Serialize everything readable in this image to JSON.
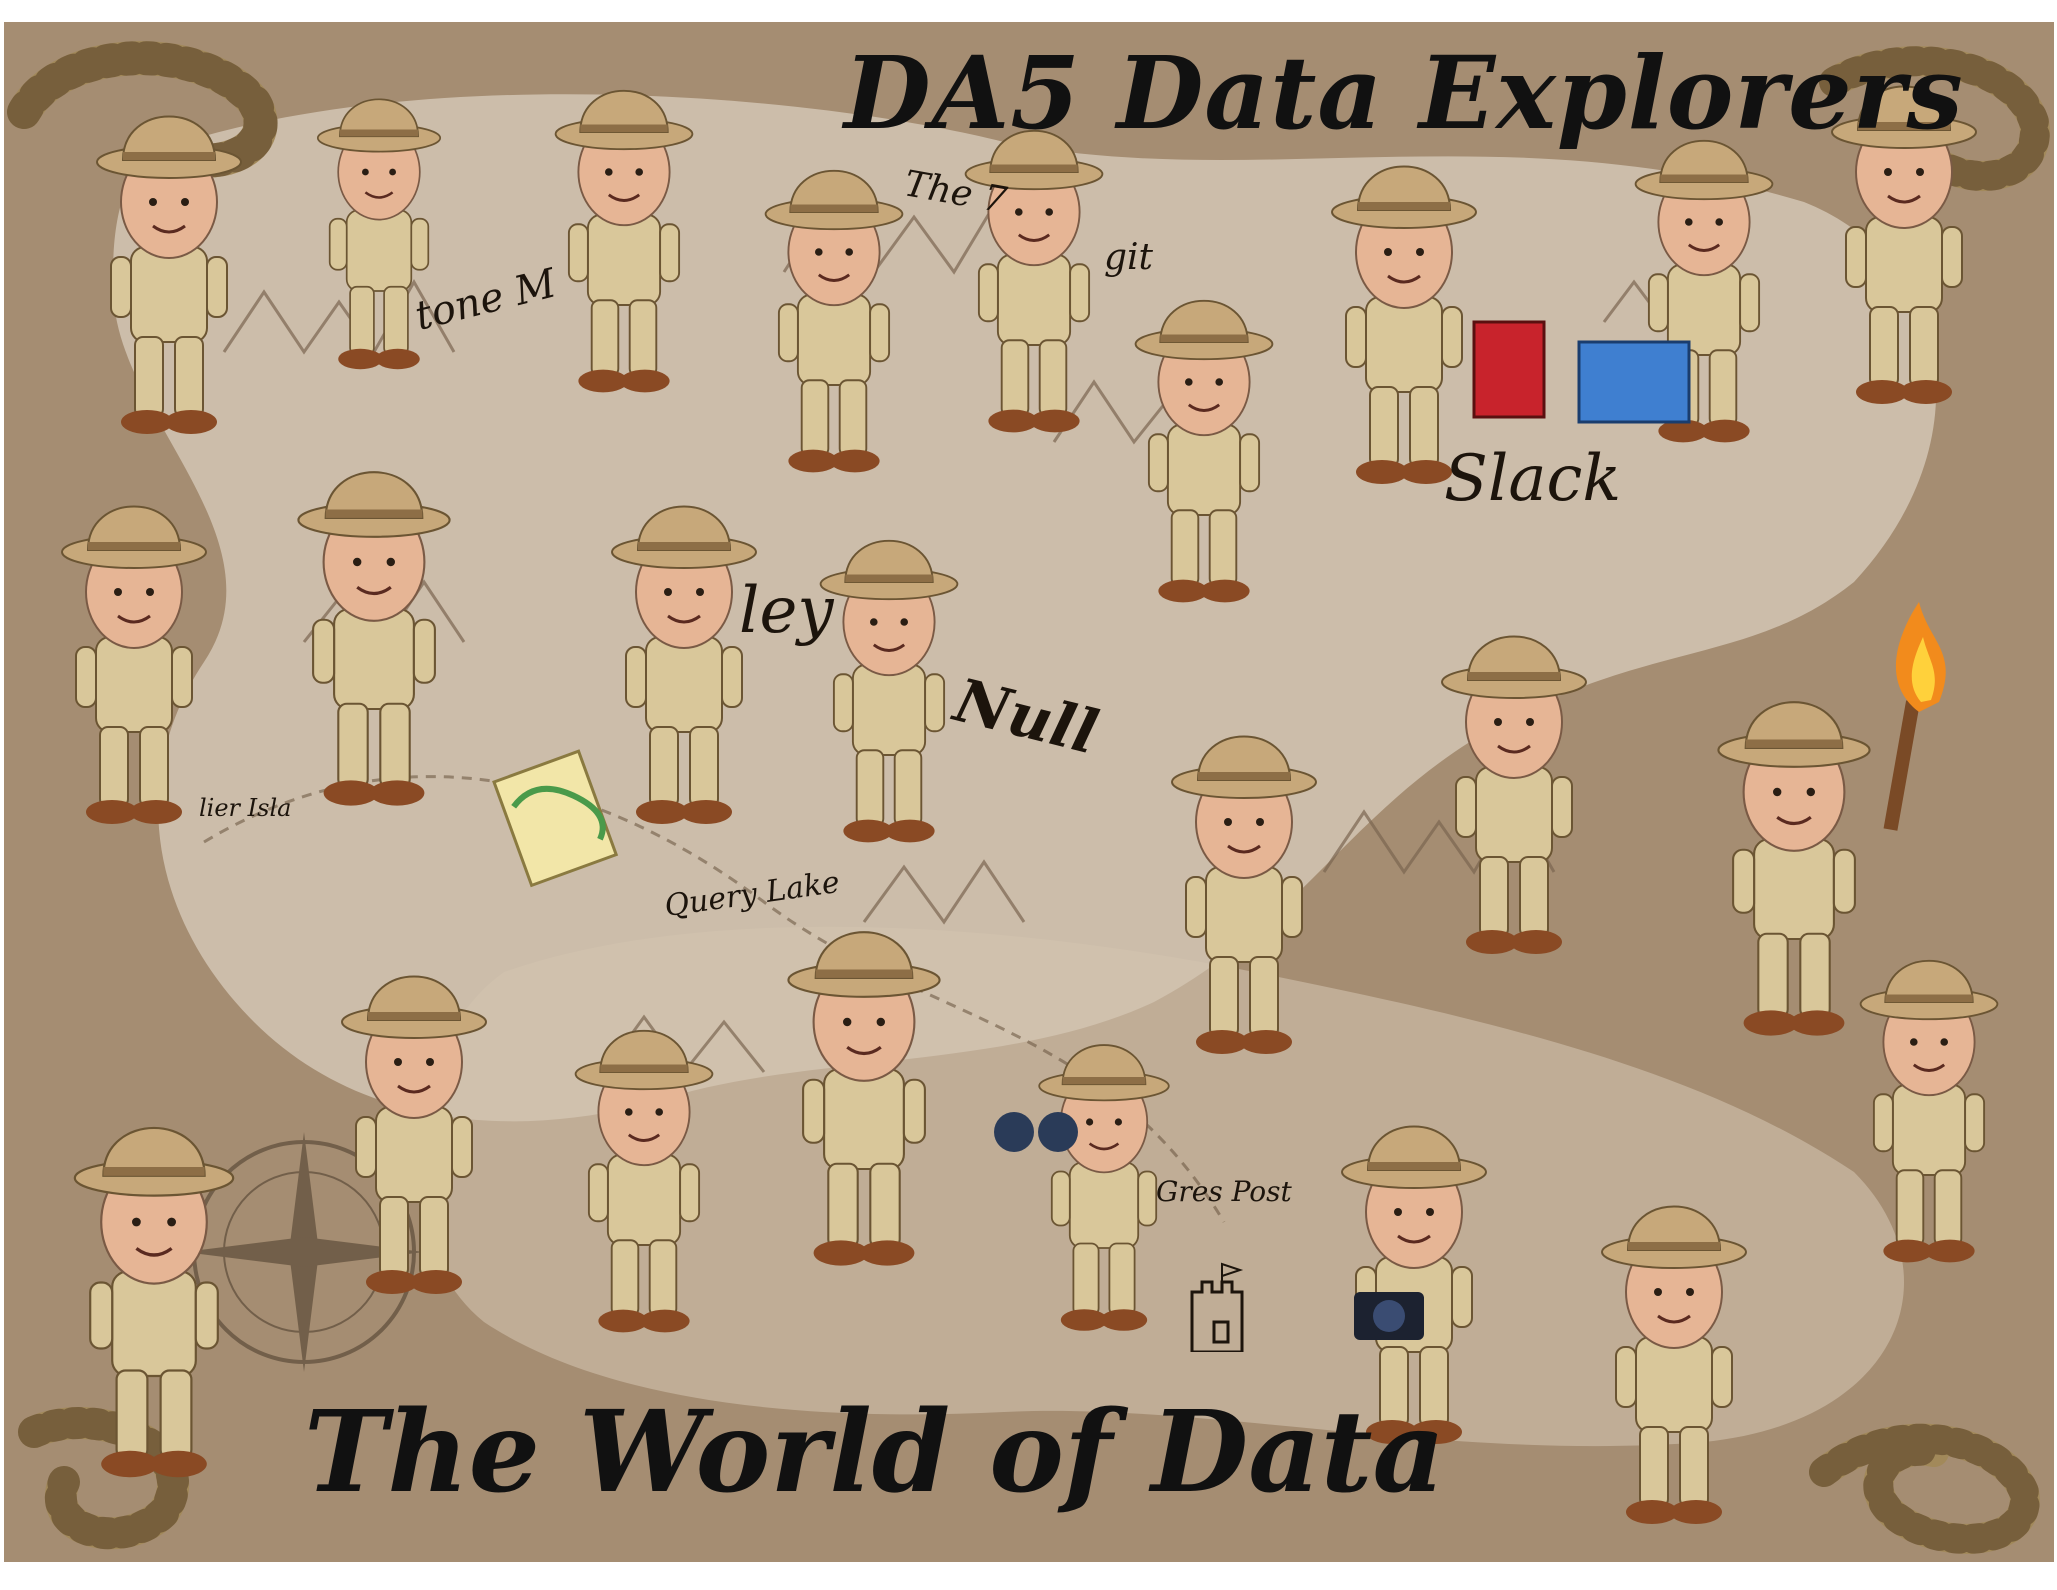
{
  "poster": {
    "title": "DA5 Data Explorers",
    "subtitle": "The World of Data"
  },
  "map_labels": {
    "query_lake": "Query Lake",
    "gres_post": "Gres Post",
    "slack_forest": "Slack",
    "null": "Null",
    "ley": "ley",
    "outlier_island": "lier Isla",
    "tone_mountain": "tone M",
    "the_git": "The 7",
    "git": "git"
  },
  "colors": {
    "map_paper": "#a58d72",
    "map_light": "#d9cdbd",
    "khaki": "#d9c79a",
    "helmet": "#c7a87a",
    "boot": "#8a4a24",
    "skin": "#e6b595",
    "ink": "#111111"
  },
  "icons": [
    "snake-icon",
    "castle-icon",
    "torch-icon",
    "compass-icon",
    "book-icon",
    "binoculars-icon",
    "camera-icon",
    "map-scroll-icon"
  ]
}
